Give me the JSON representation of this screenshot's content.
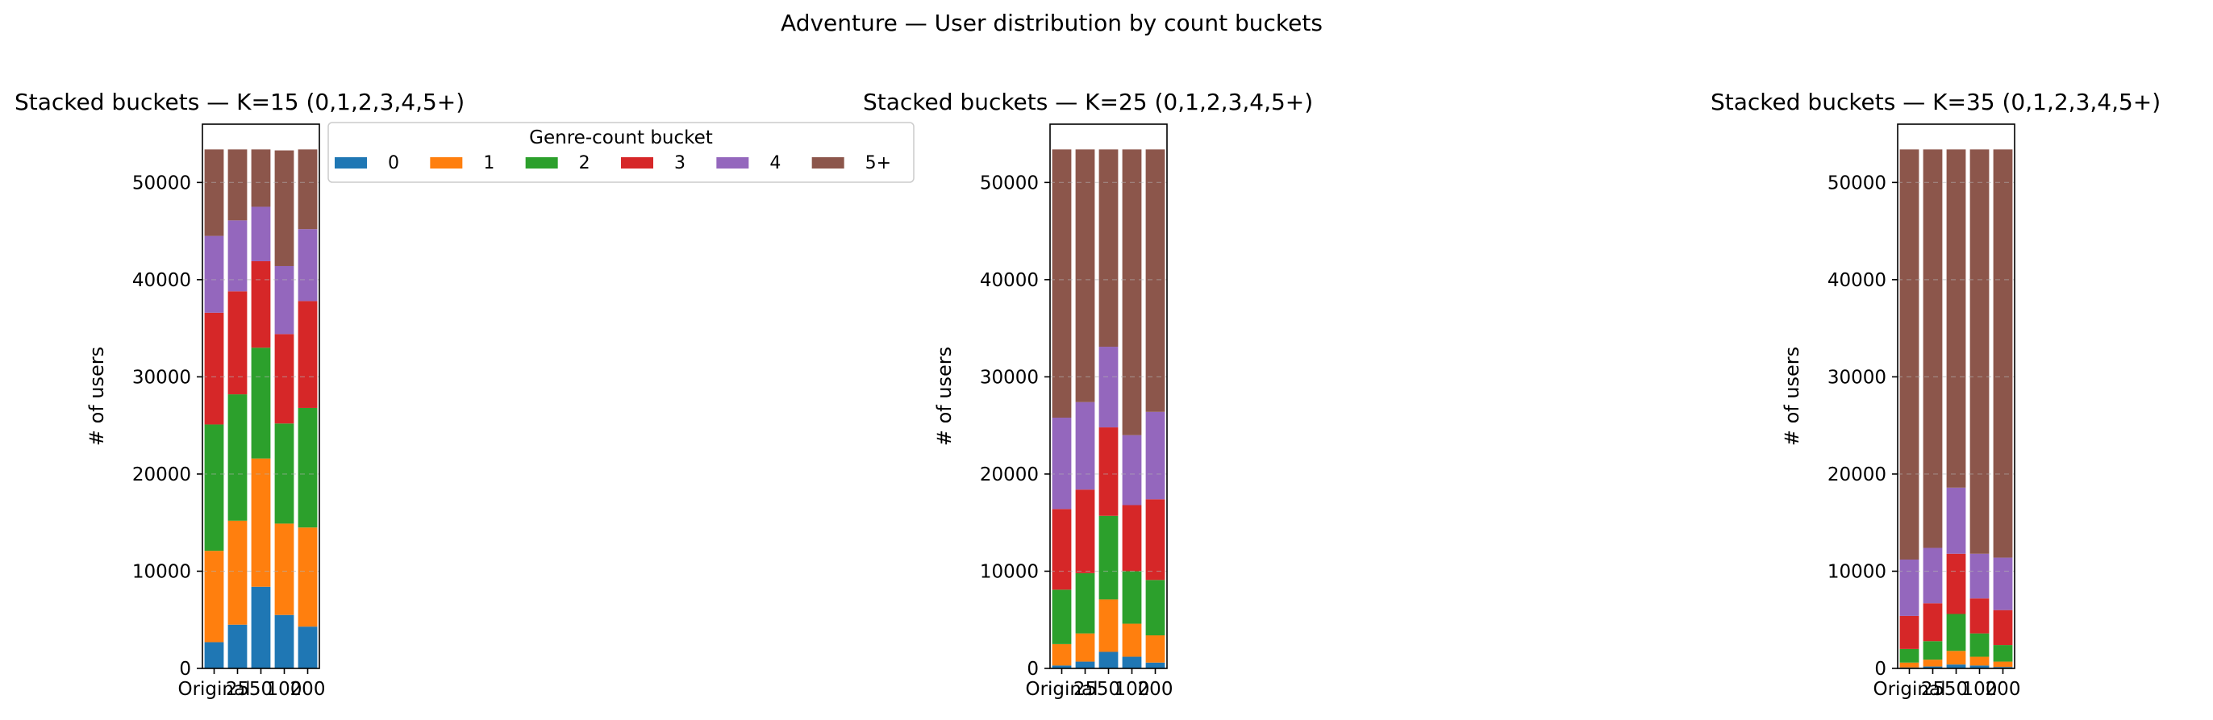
{
  "figure": {
    "suptitle": "Adventure — User distribution by count buckets"
  },
  "legend": {
    "title": "Genre-count bucket",
    "entries": [
      "0",
      "1",
      "2",
      "3",
      "4",
      "5+"
    ],
    "placement": "upper-right-of-first-panel"
  },
  "colors": {
    "0": "#1f77b4",
    "1": "#ff7f0e",
    "2": "#2ca02c",
    "3": "#d62728",
    "4": "#9467bd",
    "5+": "#8c564b"
  },
  "chart_data": [
    {
      "type": "bar",
      "stacked": true,
      "title": "Stacked buckets — K=15  (0,1,2,3,4,5+)",
      "xlabel": "",
      "ylabel": "# of users",
      "ylim": [
        0,
        56000
      ],
      "yticks": [
        0,
        10000,
        20000,
        30000,
        40000,
        50000
      ],
      "grid": "y",
      "categories": [
        "Original",
        "25",
        "50",
        "100",
        "200"
      ],
      "series": [
        {
          "name": "0",
          "values": [
            2700,
            4500,
            8400,
            5500,
            4300
          ]
        },
        {
          "name": "1",
          "values": [
            9400,
            10700,
            13200,
            9400,
            10200
          ]
        },
        {
          "name": "2",
          "values": [
            13000,
            13000,
            11400,
            10300,
            12300
          ]
        },
        {
          "name": "3",
          "values": [
            11500,
            10600,
            8900,
            9200,
            11000
          ]
        },
        {
          "name": "4",
          "values": [
            7900,
            7300,
            5600,
            7000,
            7400
          ]
        },
        {
          "name": "5+",
          "values": [
            8900,
            7300,
            5900,
            11900,
            8200
          ]
        }
      ]
    },
    {
      "type": "bar",
      "stacked": true,
      "title": "Stacked buckets — K=25  (0,1,2,3,4,5+)",
      "xlabel": "",
      "ylabel": "# of users",
      "ylim": [
        0,
        56000
      ],
      "yticks": [
        0,
        10000,
        20000,
        30000,
        40000,
        50000
      ],
      "grid": "y",
      "categories": [
        "Original",
        "25",
        "50",
        "100",
        "200"
      ],
      "series": [
        {
          "name": "0",
          "values": [
            300,
            700,
            1700,
            1200,
            600
          ]
        },
        {
          "name": "1",
          "values": [
            2200,
            2900,
            5400,
            3400,
            2800
          ]
        },
        {
          "name": "2",
          "values": [
            5600,
            6200,
            8600,
            5400,
            5700
          ]
        },
        {
          "name": "3",
          "values": [
            8300,
            8600,
            9100,
            6800,
            8300
          ]
        },
        {
          "name": "4",
          "values": [
            9400,
            9000,
            8300,
            7200,
            9000
          ]
        },
        {
          "name": "5+",
          "values": [
            27600,
            26000,
            20300,
            29400,
            27000
          ]
        }
      ]
    },
    {
      "type": "bar",
      "stacked": true,
      "title": "Stacked buckets — K=35  (0,1,2,3,4,5+)",
      "xlabel": "",
      "ylabel": "# of users",
      "ylim": [
        0,
        56000
      ],
      "yticks": [
        0,
        10000,
        20000,
        30000,
        40000,
        50000
      ],
      "grid": "y",
      "categories": [
        "Original",
        "25",
        "50",
        "100",
        "200"
      ],
      "series": [
        {
          "name": "0",
          "values": [
            100,
            200,
            400,
            300,
            150
          ]
        },
        {
          "name": "1",
          "values": [
            500,
            700,
            1400,
            900,
            550
          ]
        },
        {
          "name": "2",
          "values": [
            1400,
            1900,
            3800,
            2400,
            1700
          ]
        },
        {
          "name": "3",
          "values": [
            3400,
            3900,
            6200,
            3600,
            3600
          ]
        },
        {
          "name": "4",
          "values": [
            5800,
            5700,
            6800,
            4600,
            5400
          ]
        },
        {
          "name": "5+",
          "values": [
            42200,
            41000,
            34800,
            41600,
            42000
          ]
        }
      ]
    }
  ]
}
